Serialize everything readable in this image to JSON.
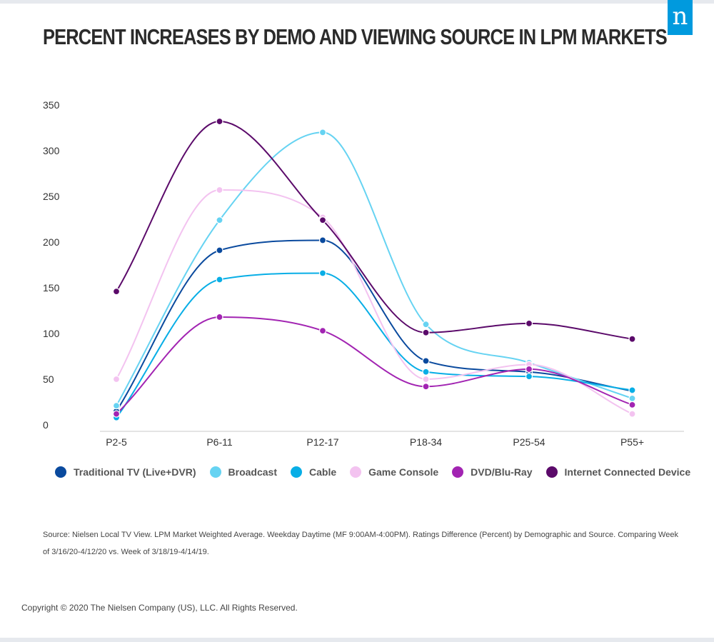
{
  "logo": {
    "glyph": "n",
    "color": "#009ade"
  },
  "title": "PERCENT INCREASES BY DEMO AND VIEWING SOURCE IN LPM MARKETS",
  "chart_data": {
    "type": "line",
    "categories": [
      "P2-5",
      "P6-11",
      "P12-17",
      "P18-34",
      "P25-54",
      "P55+"
    ],
    "ylim": [
      0,
      350
    ],
    "yticks": [
      0,
      50,
      100,
      150,
      200,
      250,
      300,
      350
    ],
    "grid": false,
    "legend_position": "bottom",
    "series": [
      {
        "name": "Traditional TV (Live+DVR)",
        "color": "#0a4a9e",
        "values": [
          15,
          191,
          202,
          70,
          58,
          37
        ]
      },
      {
        "name": "Broadcast",
        "color": "#66d3f2",
        "values": [
          21,
          224,
          320,
          110,
          68,
          29
        ]
      },
      {
        "name": "Cable",
        "color": "#08aee6",
        "values": [
          8,
          159,
          166,
          58,
          53,
          38
        ]
      },
      {
        "name": "Game Console",
        "color": "#f3c3f0",
        "values": [
          50,
          257,
          227,
          50,
          66,
          12
        ]
      },
      {
        "name": "DVD/Blu-Ray",
        "color": "#a224b2",
        "values": [
          12,
          118,
          103,
          42,
          61,
          22
        ]
      },
      {
        "name": "Internet Connected Device",
        "color": "#5b0a6a",
        "values": [
          146,
          332,
          224,
          101,
          111,
          94
        ]
      }
    ]
  },
  "source_note": "Source: Nielsen Local TV View. LPM Market Weighted Average. Weekday Daytime (MF 9:00AM-4:00PM). Ratings Difference (Percent) by Demographic and Source. Comparing Week of 3/16/20-4/12/20 vs. Week of 3/18/19-4/14/19.",
  "copyright": "Copyright © 2020 The Nielsen Company (US), LLC. All Rights Reserved."
}
